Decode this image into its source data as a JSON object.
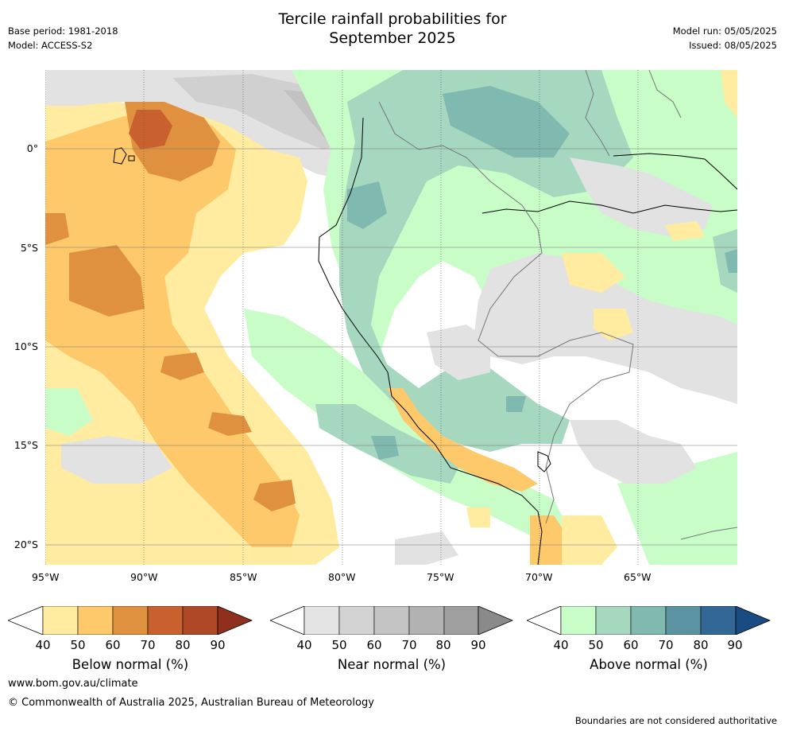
{
  "title_line1": "Tercile rainfall probabilities for",
  "title_line2": "September 2025",
  "base_period": "Base period: 1981-2018",
  "model": "Model: ACCESS-S2",
  "model_run": "Model run: 05/05/2025",
  "issued": "Issued: 08/05/2025",
  "lat_labels": [
    "0°",
    "5°S",
    "10°S",
    "15°S",
    "20°S"
  ],
  "lon_labels": [
    "95°W",
    "90°W",
    "85°W",
    "80°W",
    "75°W",
    "70°W",
    "65°W"
  ],
  "colorbars": [
    {
      "label": "Below normal (%)",
      "ticks": [
        "40",
        "50",
        "60",
        "70",
        "80",
        "90"
      ],
      "colors": [
        "#ffeca0",
        "#fdc96a",
        "#e0913f",
        "#c9612f",
        "#ae4826",
        "#8f2f1d"
      ]
    },
    {
      "label": "Near normal (%)",
      "ticks": [
        "40",
        "50",
        "60",
        "70",
        "80",
        "90"
      ],
      "colors": [
        "#e4e4e4",
        "#d3d3d3",
        "#c3c3c3",
        "#b2b2b2",
        "#9f9f9f",
        "#8a8a8a"
      ]
    },
    {
      "label": "Above normal (%)",
      "ticks": [
        "40",
        "50",
        "60",
        "70",
        "80",
        "90"
      ],
      "colors": [
        "#c8fdc8",
        "#a6d8bf",
        "#80b9b0",
        "#5b94a0",
        "#336896",
        "#1a4b82"
      ]
    }
  ],
  "website": "www.bom.gov.au/climate",
  "copyright": "© Commonwealth of Australia 2025, Australian Bureau of Meteorology",
  "disclaimer": "Boundaries are not considered authoritative"
}
